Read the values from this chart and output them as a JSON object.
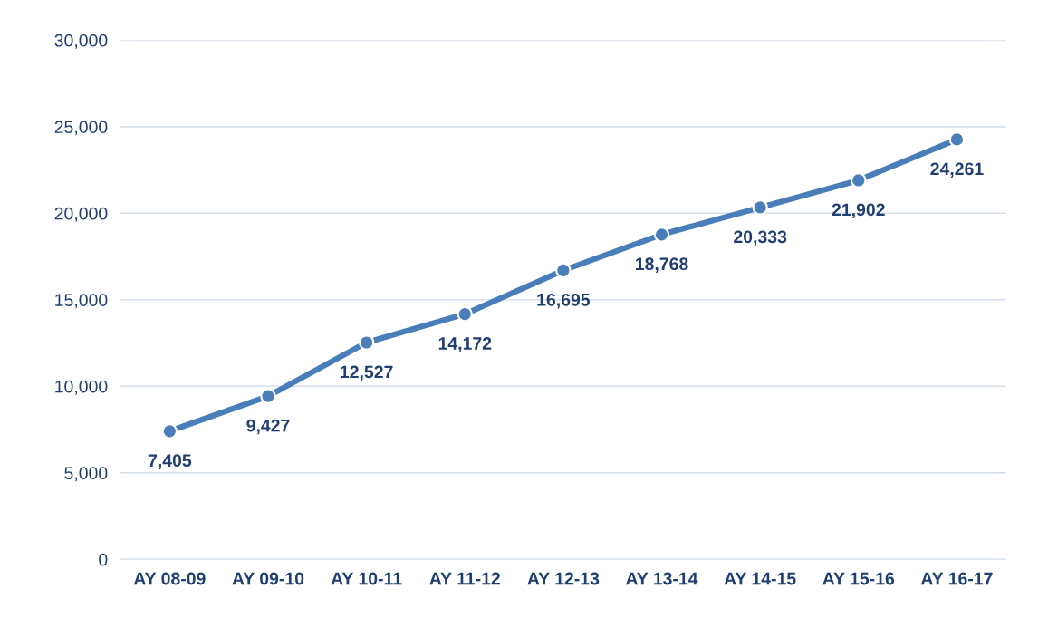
{
  "chart_data": {
    "type": "line",
    "categories": [
      "AY 08-09",
      "AY 09-10",
      "AY 10-11",
      "AY 11-12",
      "AY 12-13",
      "AY 13-14",
      "AY 14-15",
      "AY 15-16",
      "AY 16-17"
    ],
    "series": [
      {
        "color": "#4a7ebb",
        "values": [
          7405,
          9427,
          12527,
          14172,
          16695,
          18768,
          20333,
          21902,
          24261
        ]
      }
    ],
    "ylim": [
      0,
      30000
    ],
    "yticks": [
      {
        "value": 0,
        "label": "0"
      },
      {
        "value": 5000,
        "label": "5,000"
      },
      {
        "value": 10000,
        "label": "10,000"
      },
      {
        "value": 15000,
        "label": "15,000"
      },
      {
        "value": 20000,
        "label": "20,000"
      },
      {
        "value": 25000,
        "label": "25,000"
      },
      {
        "value": 30000,
        "label": "30,000"
      }
    ],
    "value_labels": [
      "7,405",
      "9,427",
      "12,527",
      "14,172",
      "16,695",
      "18,768",
      "20,333",
      "21,902",
      "24,261"
    ],
    "grid": "y",
    "marker": "circle",
    "line_style": "solid"
  }
}
